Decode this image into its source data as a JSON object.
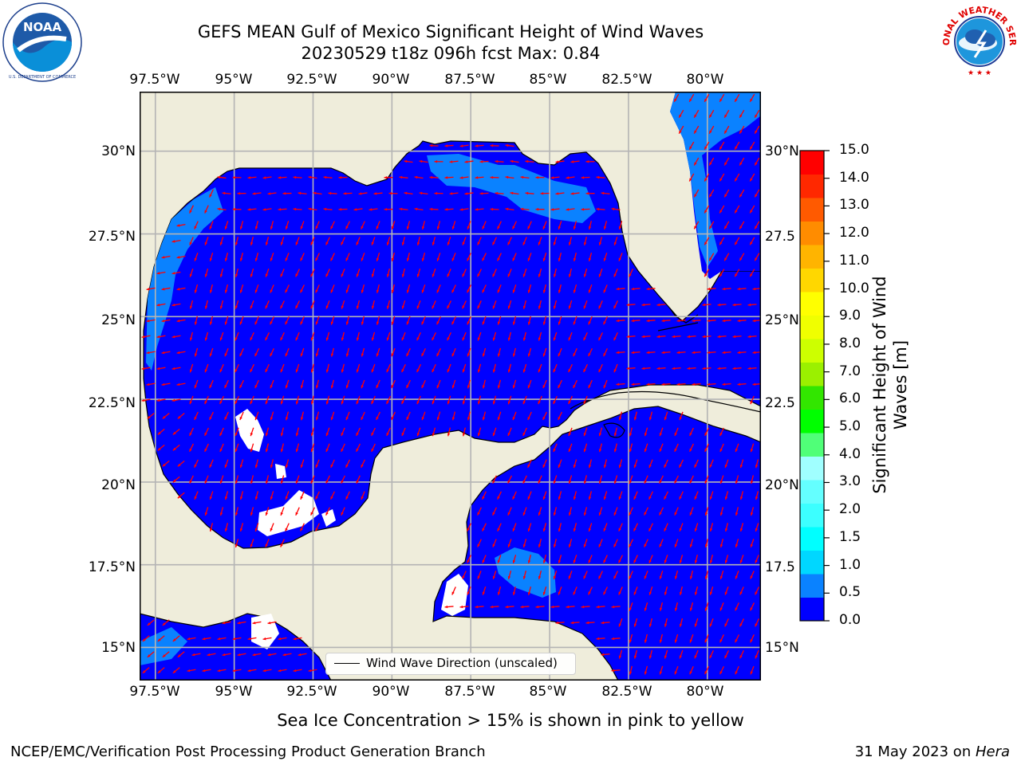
{
  "header": {
    "title_line1": "GEFS MEAN Gulf of Mexico Significant Height of Wind Waves",
    "title_line2": "20230529 t18z 096h fcst   Max: 0.84"
  },
  "logos": {
    "left": {
      "name": "noaa-logo",
      "text": "NOAA",
      "ring_text": "NATIONAL OCEANIC AND ATMOSPHERIC ADMINISTRATION · U.S. DEPARTMENT OF COMMERCE"
    },
    "right": {
      "name": "nws-logo",
      "ring_text": "NATIONAL WEATHER SERVICE"
    }
  },
  "map": {
    "lon_labels": [
      "97.5°W",
      "95°W",
      "92.5°W",
      "90°W",
      "87.5°W",
      "85°W",
      "82.5°W",
      "80°W"
    ],
    "lat_labels_left": [
      "30°N",
      "27.5°N",
      "25°N",
      "22.5°N",
      "20°N",
      "17.5°N",
      "15°N"
    ],
    "lat_labels_right": [
      "30°N",
      "27.5",
      "25°N",
      "22.5",
      "20°N",
      "17.5",
      "15°N"
    ],
    "lon_range": [
      -98,
      -78.3
    ],
    "lat_range": [
      14,
      31.8
    ],
    "colors": {
      "land": "#efeddb",
      "water_low": "#0000ff",
      "water_mid": "#0a82ff",
      "arrow": "#ff0000",
      "grid": "#b4b4b4"
    },
    "max_value": 0.84
  },
  "legend": {
    "label": "Wind Wave Direction (unscaled)"
  },
  "colorbar": {
    "label_line1": "Significant Height of Wind",
    "label_line2": "Waves [m]",
    "ticks": [
      "15.0",
      "14.0",
      "13.0",
      "12.0",
      "11.0",
      "10.0",
      "9.0",
      "8.0",
      "7.0",
      "6.0",
      "5.0",
      "4.0",
      "3.0",
      "2.0",
      "1.5",
      "1.0",
      "0.5",
      "0.0"
    ],
    "values": [
      15,
      14,
      13,
      12,
      11,
      10,
      9,
      8,
      7,
      6,
      5,
      4,
      3,
      2,
      1.5,
      1,
      0.5,
      0
    ],
    "colors": [
      "#0000ff",
      "#0a82ff",
      "#00d7ff",
      "#00ffff",
      "#3cffff",
      "#64ffff",
      "#a0ffff",
      "#50ff78",
      "#00ff00",
      "#32e600",
      "#9bf000",
      "#cdff00",
      "#f0ff00",
      "#ffff00",
      "#ffd700",
      "#ffb400",
      "#ff8c00",
      "#ff5a00",
      "#ff2800",
      "#ff0000"
    ]
  },
  "bottom_note": "Sea Ice Concentration > 15% is shown in pink to yellow",
  "footer": {
    "left": "NCEP/EMC/Verification Post Processing Product Generation Branch",
    "date": "31 May 2023 on ",
    "host": "Hera"
  }
}
